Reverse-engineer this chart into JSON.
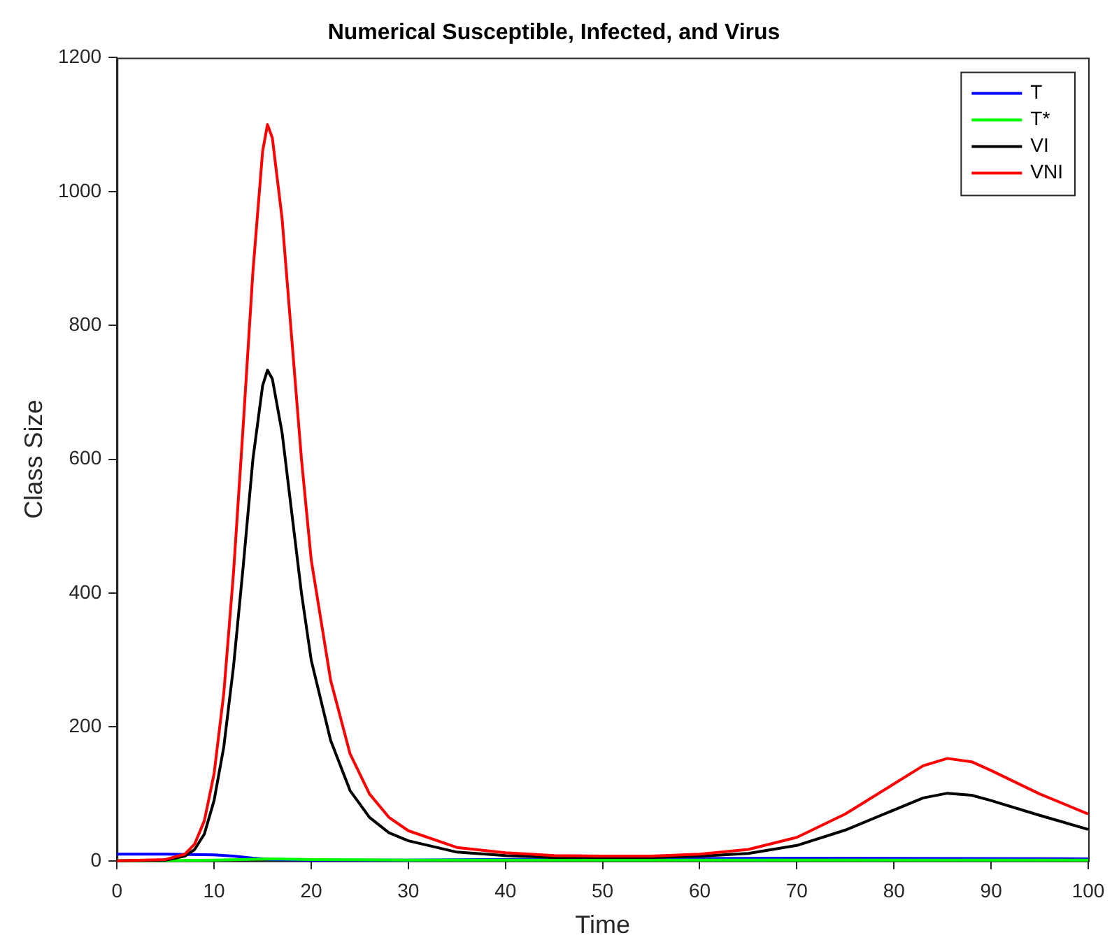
{
  "chart_data": {
    "type": "line",
    "title": "Numerical Susceptible, Infected, and Virus",
    "xlabel": "Time",
    "ylabel": "Class Size",
    "xlim": [
      0,
      100
    ],
    "xticks": [
      0,
      10,
      20,
      30,
      40,
      50,
      60,
      70,
      80,
      90,
      100
    ],
    "ylim": [
      0,
      1200
    ],
    "yticks": [
      0,
      200,
      400,
      600,
      800,
      1000,
      1200
    ],
    "grid": false,
    "legend": "top right",
    "marker": "none",
    "line_style": "solid",
    "series": [
      {
        "name": "T",
        "color": "#0000ff",
        "x": [
          0,
          5,
          10,
          12,
          14,
          16,
          20,
          30,
          50,
          70,
          100
        ],
        "values": [
          10,
          10,
          9,
          7,
          4,
          2,
          1,
          1,
          3,
          4,
          3
        ]
      },
      {
        "name": "T*",
        "color": "#00ff00",
        "x": [
          0,
          10,
          16,
          20,
          30,
          100
        ],
        "values": [
          0,
          1,
          3,
          2,
          1,
          1
        ]
      },
      {
        "name": "VI",
        "color": "#000000",
        "x": [
          0,
          5,
          7,
          8,
          9,
          10,
          11,
          12,
          13,
          14,
          15,
          15.5,
          16,
          17,
          18,
          19,
          20,
          22,
          24,
          26,
          28,
          30,
          35,
          40,
          45,
          50,
          55,
          60,
          65,
          70,
          75,
          80,
          83,
          85.5,
          88,
          90,
          95,
          100
        ],
        "values": [
          0,
          1,
          7,
          17,
          40,
          90,
          170,
          290,
          440,
          600,
          710,
          733,
          720,
          640,
          520,
          400,
          300,
          180,
          105,
          65,
          42,
          30,
          13,
          8,
          5,
          5,
          5,
          7,
          11,
          23,
          46,
          76,
          94,
          101,
          98,
          90,
          68,
          47
        ]
      },
      {
        "name": "VNI",
        "color": "#ff0000",
        "x": [
          0,
          5,
          7,
          8,
          9,
          10,
          11,
          12,
          13,
          14,
          15,
          15.5,
          16,
          17,
          18,
          19,
          20,
          22,
          24,
          26,
          28,
          30,
          35,
          40,
          45,
          50,
          55,
          60,
          65,
          70,
          75,
          80,
          83,
          85.5,
          88,
          90,
          95,
          100
        ],
        "values": [
          0,
          2,
          10,
          25,
          60,
          130,
          250,
          430,
          650,
          880,
          1060,
          1100,
          1080,
          960,
          780,
          600,
          450,
          270,
          160,
          100,
          65,
          45,
          20,
          12,
          8,
          7,
          7,
          10,
          17,
          35,
          70,
          115,
          142,
          153,
          148,
          135,
          100,
          70
        ]
      }
    ]
  }
}
